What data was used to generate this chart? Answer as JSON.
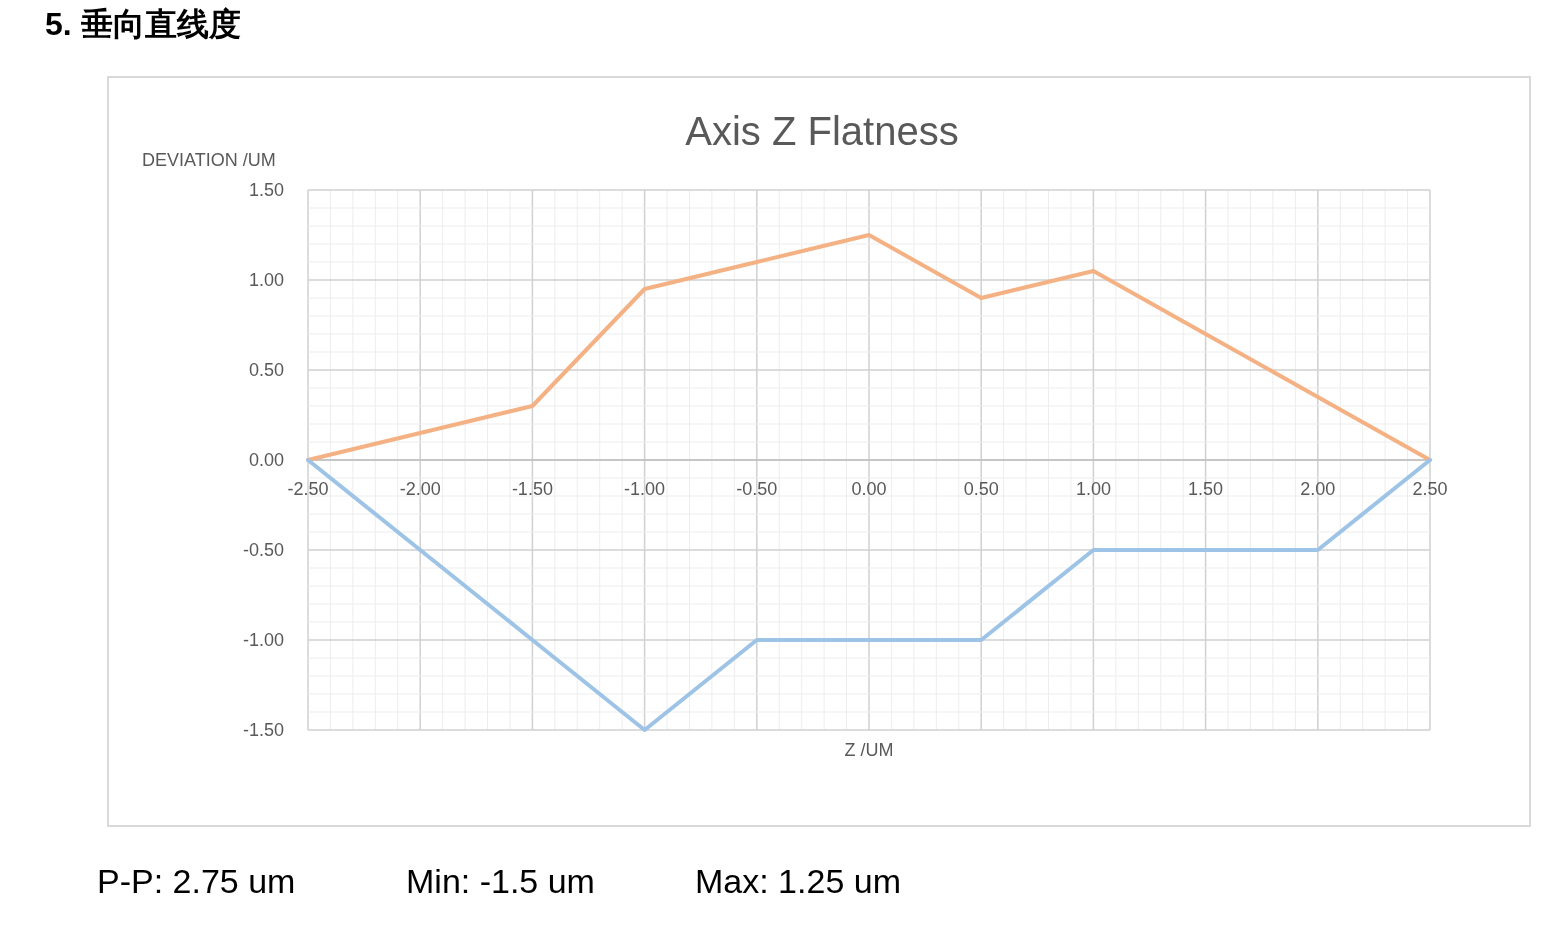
{
  "chart_data": {
    "type": "line",
    "title": "Axis Z Flatness",
    "ylabel": "DEVIATION /UM",
    "xlabel": "Z /UM",
    "x": [
      -2.5,
      -2.0,
      -1.5,
      -1.0,
      -0.5,
      0.0,
      0.5,
      1.0,
      1.5,
      2.0,
      2.5
    ],
    "series": [
      {
        "color": "#f4b183",
        "values": [
          0,
          0.15,
          0.3,
          0.95,
          1.1,
          1.25,
          0.9,
          1.05,
          0.7,
          0.35,
          0
        ]
      },
      {
        "color": "#9dc3e6",
        "values": [
          0,
          -0.5,
          -1.0,
          -1.5,
          -1.0,
          -1.0,
          -1.0,
          -0.5,
          -0.5,
          -0.5,
          0
        ]
      }
    ],
    "xlim": [
      -2.5,
      2.5
    ],
    "xticks": [
      {
        "value": -2.5,
        "label": "-2.50"
      },
      {
        "value": -2.0,
        "label": "-2.00"
      },
      {
        "value": -1.5,
        "label": "-1.50"
      },
      {
        "value": -1.0,
        "label": "-1.00"
      },
      {
        "value": -0.5,
        "label": "-0.50"
      },
      {
        "value": 0,
        "label": "0.00"
      },
      {
        "value": 0.5,
        "label": "0.50"
      },
      {
        "value": 1.0,
        "label": "1.00"
      },
      {
        "value": 1.5,
        "label": "1.50"
      },
      {
        "value": 2.0,
        "label": "2.00"
      },
      {
        "value": 2.5,
        "label": "2.50"
      }
    ],
    "ylim": [
      -1.5,
      1.5
    ],
    "yticks": [
      {
        "value": -1.5,
        "label": "-1.50"
      },
      {
        "value": -1.0,
        "label": "-1.00"
      },
      {
        "value": -0.5,
        "label": "-0.50"
      },
      {
        "value": 0,
        "label": "0.00"
      },
      {
        "value": 0.5,
        "label": "0.50"
      },
      {
        "value": 1.0,
        "label": "1.00"
      },
      {
        "value": 1.5,
        "label": "1.50"
      }
    ],
    "grid": true,
    "marker": "none",
    "line_style": "solid",
    "annotations": [
      "5.  垂向直线度",
      "P-P: 2.75 um",
      "Min: -1.5 um",
      "Max: 1.25 um"
    ]
  }
}
